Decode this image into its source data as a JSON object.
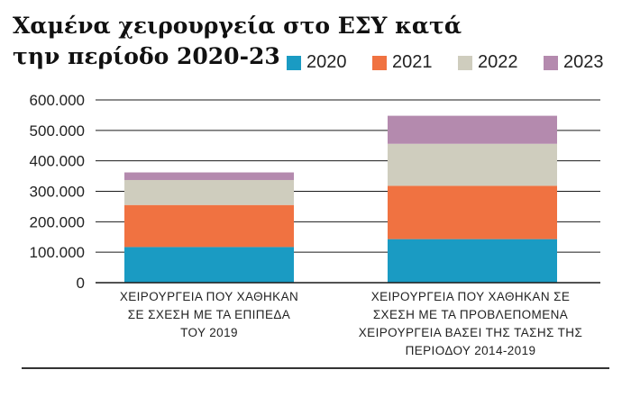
{
  "title_line1": "Χαμένα χειρουργεία στο ΕΣΥ κατά",
  "title_line2": "την περίοδο 2020-23",
  "chart_data": {
    "type": "bar",
    "stacked": true,
    "categories": [
      "ΧΕΙΡΟΥΡΓΕΙΑ ΠΟΥ ΧΑΘΗΚΑΝ ΣΕ ΣΧΕΣΗ ΜΕ ΤΑ ΕΠΙΠΕΔΑ ΤΟΥ 2019",
      "ΧΕΙΡΟΥΡΓΕΙΑ ΠΟΥ ΧΑΘΗΚΑΝ ΣΕ ΣΧΕΣΗ ΜΕ ΤΑ ΠΡΟΒΛΕΠΟΜΕΝΑ ΧΕΙΡΟΥΡΓΕΙΑ ΒΑΣΕΙ ΤΗΣ ΤΑΣΗΣ ΤΗΣ ΠΕΡΙΟΔΟΥ 2014-2019"
    ],
    "series": [
      {
        "name": "2020",
        "color": "#1a9bc3",
        "values": [
          117000,
          143000
        ]
      },
      {
        "name": "2021",
        "color": "#f07241",
        "values": [
          138000,
          175000
        ]
      },
      {
        "name": "2022",
        "color": "#cfcdbe",
        "values": [
          82000,
          138000
        ]
      },
      {
        "name": "2023",
        "color": "#b48aae",
        "values": [
          25000,
          92000
        ]
      }
    ],
    "ylim": [
      0,
      600000
    ],
    "yticks": [
      0,
      100000,
      200000,
      300000,
      400000,
      500000,
      600000
    ],
    "ytick_labels": [
      "0",
      "100.000",
      "200.000",
      "300.000",
      "400.000",
      "500.000",
      "600.000"
    ],
    "grid": true,
    "legend_position": "top-right"
  },
  "category_label_lines": [
    [
      "ΧΕΙΡΟΥΡΓΕΙΑ ΠΟΥ ΧΑΘΗΚΑΝ",
      "ΣΕ ΣΧΕΣΗ ΜΕ ΤΑ ΕΠΙΠΕΔΑ",
      "ΤΟΥ 2019"
    ],
    [
      "ΧΕΙΡΟΥΡΓΕΙΑ ΠΟΥ ΧΑΘΗΚΑΝ ΣΕ",
      "ΣΧΕΣΗ ΜΕ ΤΑ ΠΡΟΒΛΕΠΟΜΕΝΑ",
      "ΧΕΙΡΟΥΡΓΕΙΑ ΒΑΣΕΙ ΤΗΣ ΤΑΣΗΣ ΤΗΣ",
      "ΠΕΡΙΟΔΟΥ 2014-2019"
    ]
  ]
}
